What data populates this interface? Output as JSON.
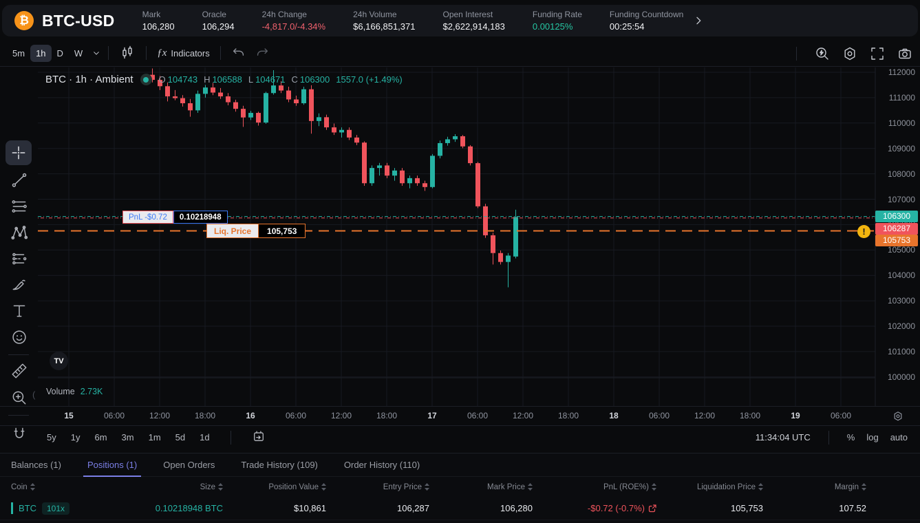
{
  "topbar": {
    "logo_glyph": "₿",
    "symbol": "BTC-USD",
    "stats": [
      {
        "label": "Mark",
        "value": "106,280",
        "color": "white"
      },
      {
        "label": "Oracle",
        "value": "106,294",
        "color": "white"
      },
      {
        "label": "24h Change",
        "value": "-4,817.0/-4.34%",
        "color": "red"
      },
      {
        "label": "24h Volume",
        "value": "$6,166,851,371",
        "color": "white"
      },
      {
        "label": "Open Interest",
        "value": "$2,622,914,183",
        "color": "white"
      },
      {
        "label": "Funding Rate",
        "value": "0.00125%",
        "color": "green"
      },
      {
        "label": "Funding Countdown",
        "value": "00:25:54",
        "color": "white"
      }
    ]
  },
  "chart_toolbar": {
    "intervals": [
      "5m",
      "1h",
      "D",
      "W"
    ],
    "active_interval": "1h",
    "fx_glyph": "ƒx",
    "indicators_label": "Indicators",
    "right_icons": [
      "quick-search-icon",
      "settings-icon",
      "fullscreen-icon",
      "camera-icon"
    ]
  },
  "legend": {
    "title": "BTC · 1h · Ambient",
    "o_label": "O",
    "o_value": "104743",
    "h_label": "H",
    "h_value": "106588",
    "l_label": "L",
    "l_value": "104671",
    "c_label": "C",
    "c_value": "106300",
    "change": "1557.0 (+1.49%)"
  },
  "chart_data": {
    "type": "candlestick",
    "symbol": "BTC-USD",
    "interval": "1h",
    "ohlc_format": [
      "open",
      "high",
      "low",
      "close"
    ],
    "candles": [
      [
        111900,
        112150,
        111600,
        111700
      ],
      [
        111700,
        111850,
        111300,
        111450
      ],
      [
        111450,
        111600,
        110850,
        111050
      ],
      [
        111050,
        111300,
        110900,
        110980
      ],
      [
        110980,
        111100,
        110650,
        110780
      ],
      [
        110780,
        110950,
        110250,
        110500
      ],
      [
        110500,
        111280,
        110400,
        111150
      ],
      [
        111150,
        111500,
        111000,
        111400
      ],
      [
        111400,
        111580,
        111100,
        111200
      ],
      [
        111200,
        111380,
        110950,
        111050
      ],
      [
        111050,
        111180,
        110700,
        110820
      ],
      [
        110820,
        110920,
        110450,
        110560
      ],
      [
        110560,
        110680,
        109850,
        110220
      ],
      [
        110220,
        110480,
        110120,
        110400
      ],
      [
        110400,
        110450,
        109900,
        110020
      ],
      [
        110020,
        111230,
        109970,
        111180
      ],
      [
        111180,
        112080,
        111120,
        111480
      ],
      [
        111480,
        111650,
        111180,
        111280
      ],
      [
        111280,
        111430,
        110820,
        110930
      ],
      [
        110930,
        111080,
        110680,
        110780
      ],
      [
        110780,
        111430,
        110720,
        111330
      ],
      [
        111330,
        111490,
        109580,
        110080
      ],
      [
        110080,
        110380,
        109880,
        110230
      ],
      [
        110230,
        110330,
        109730,
        109830
      ],
      [
        109830,
        109980,
        109530,
        109630
      ],
      [
        109630,
        109830,
        109430,
        109730
      ],
      [
        109730,
        109830,
        109330,
        109430
      ],
      [
        109430,
        109530,
        109130,
        109230
      ],
      [
        109230,
        109280,
        107530,
        107630
      ],
      [
        107630,
        108330,
        107530,
        108230
      ],
      [
        108230,
        108430,
        107930,
        108330
      ],
      [
        108330,
        108430,
        107830,
        107930
      ],
      [
        107930,
        108230,
        107730,
        108130
      ],
      [
        108130,
        108230,
        107530,
        107630
      ],
      [
        107630,
        107930,
        107430,
        107830
      ],
      [
        107830,
        107930,
        107530,
        107630
      ],
      [
        107630,
        107730,
        107330,
        107480
      ],
      [
        107480,
        108780,
        107430,
        108710
      ],
      [
        108710,
        109310,
        108610,
        109210
      ],
      [
        109210,
        109460,
        109110,
        109360
      ],
      [
        109360,
        109560,
        109260,
        109480
      ],
      [
        109480,
        109530,
        109010,
        109080
      ],
      [
        109080,
        109130,
        108330,
        108420
      ],
      [
        108420,
        108470,
        106650,
        106720
      ],
      [
        106720,
        106820,
        105480,
        105580
      ],
      [
        105580,
        105680,
        104430,
        104880
      ],
      [
        104880,
        104980,
        104430,
        104530
      ],
      [
        104530,
        104880,
        103530,
        104780
      ],
      [
        104743,
        106588,
        104671,
        106300
      ]
    ],
    "price_axis_ticks": [
      112000,
      111000,
      110000,
      109000,
      108000,
      107000,
      106000,
      105000,
      104000,
      103000,
      102000,
      101000,
      100000
    ],
    "time_axis_labels": [
      {
        "t": "15",
        "bold": true
      },
      {
        "t": "06:00",
        "bold": false
      },
      {
        "t": "12:00",
        "bold": false
      },
      {
        "t": "18:00",
        "bold": false
      },
      {
        "t": "16",
        "bold": true
      },
      {
        "t": "06:00",
        "bold": false
      },
      {
        "t": "12:00",
        "bold": false
      },
      {
        "t": "18:00",
        "bold": false
      },
      {
        "t": "17",
        "bold": true
      },
      {
        "t": "06:00",
        "bold": false
      },
      {
        "t": "12:00",
        "bold": false
      },
      {
        "t": "18:00",
        "bold": false
      },
      {
        "t": "18",
        "bold": true
      },
      {
        "t": "06:00",
        "bold": false
      },
      {
        "t": "12:00",
        "bold": false
      },
      {
        "t": "18:00",
        "bold": false
      },
      {
        "t": "19",
        "bold": true
      },
      {
        "t": "06:00",
        "bold": false
      }
    ],
    "overlays": {
      "last_price": {
        "value": 106300,
        "tag": "106300",
        "color": "#26B3A4",
        "style": "dash-dot"
      },
      "entry_price": {
        "value": 106287,
        "tag": "106287",
        "color": "#F0545C",
        "style": "dash-dot"
      },
      "liquidation_price": {
        "value": 105753,
        "tag": "105753",
        "color": "#E8742C",
        "style": "dashed"
      }
    },
    "volume": {
      "label": "Volume",
      "value": "2.73K"
    },
    "grid": true,
    "colors": {
      "bull": "#26B3A4",
      "bear": "#F0545C"
    }
  },
  "position_overlays": {
    "pnl_label": "PnL -$0.72",
    "size_value": "0.10218948",
    "liq_label": "Liq. Price",
    "liq_value": "105,753",
    "warning_glyph": "!"
  },
  "watermark": {
    "tv_logo": "TV"
  },
  "bottom_toolbar": {
    "ranges": [
      "5y",
      "1y",
      "6m",
      "3m",
      "1m",
      "5d",
      "1d"
    ],
    "clock": "11:34:04 UTC",
    "percent_label": "%",
    "log_label": "log",
    "auto_label": "auto"
  },
  "tabs": [
    {
      "label": "Balances (1)",
      "active": false
    },
    {
      "label": "Positions (1)",
      "active": true
    },
    {
      "label": "Open Orders",
      "active": false
    },
    {
      "label": "Trade History (109)",
      "active": false
    },
    {
      "label": "Order History (110)",
      "active": false
    }
  ],
  "positions_table": {
    "columns": [
      "Coin",
      "Size",
      "Position Value",
      "Entry Price",
      "Mark Price",
      "PnL (ROE%)",
      "Liquidation Price",
      "Margin"
    ],
    "rows": [
      {
        "coin": "BTC",
        "leverage": "101x",
        "size": "0.10218948 BTC",
        "position_value": "$10,861",
        "entry_price": "106,287",
        "mark_price": "106,280",
        "pnl": "-$0.72 (-0.7%)",
        "liquidation_price": "105,753",
        "margin": "107.52"
      }
    ]
  },
  "colors": {
    "accent_teal": "#26B3A4",
    "accent_red": "#F0545C",
    "accent_orange": "#E8742C",
    "accent_blue": "#3D7BF7",
    "tab_active": "#7B7FE6",
    "warning": "#F2B50F"
  }
}
